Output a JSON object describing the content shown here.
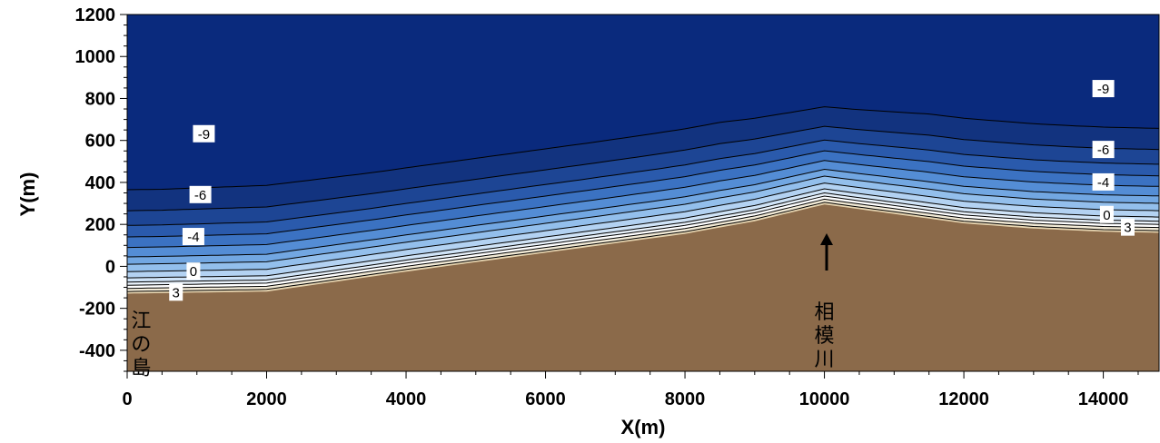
{
  "chart_data": {
    "type": "contour",
    "xlabel": "X(m)",
    "ylabel": "Y(m)",
    "xlim": [
      0,
      14800
    ],
    "ylim": [
      -500,
      1200
    ],
    "x_ticks": [
      "0",
      "2000",
      "4000",
      "6000",
      "8000",
      "10000",
      "12000",
      "14000"
    ],
    "x_tick_values": [
      0,
      2000,
      4000,
      6000,
      8000,
      10000,
      12000,
      14000
    ],
    "y_ticks": [
      "1200",
      "1000",
      "800",
      "600",
      "400",
      "200",
      "0",
      "-200",
      "-400"
    ],
    "y_tick_values": [
      1200,
      1000,
      800,
      600,
      400,
      200,
      0,
      -200,
      -400
    ],
    "shoreline": {
      "x": [
        0,
        2000,
        4000,
        6000,
        8000,
        9000,
        10000,
        11000,
        12000,
        13000,
        14000,
        14800
      ],
      "y": [
        -105,
        -95,
        0,
        90,
        180,
        240,
        320,
        275,
        230,
        205,
        190,
        185
      ]
    },
    "contour_levels": [
      3,
      2,
      1,
      0,
      -1,
      -2,
      -3,
      -4,
      -5,
      -6,
      -7,
      -8,
      -9
    ],
    "contour_offsets": [
      -15,
      0,
      15,
      30,
      50,
      80,
      115,
      150,
      195,
      245,
      300,
      370,
      470
    ],
    "contour_labels": [
      {
        "level": 3,
        "text": "3",
        "x": 700,
        "y": -125
      },
      {
        "level": 0,
        "text": "0",
        "x": 950,
        "y": -25
      },
      {
        "level": -4,
        "text": "-4",
        "x": 950,
        "y": 140
      },
      {
        "level": -6,
        "text": "-6",
        "x": 1050,
        "y": 340
      },
      {
        "level": -9,
        "text": "-9",
        "x": 1100,
        "y": 630
      },
      {
        "level": -9,
        "text": "-9",
        "x": 14000,
        "y": 845
      },
      {
        "level": -6,
        "text": "-6",
        "x": 14000,
        "y": 555
      },
      {
        "level": -4,
        "text": "-4",
        "x": 14000,
        "y": 400
      },
      {
        "level": 0,
        "text": "0",
        "x": 14050,
        "y": 245
      },
      {
        "level": 3,
        "text": "3",
        "x": 14350,
        "y": 185
      }
    ],
    "colors": {
      "land": "#8b6a4a",
      "sand": "#e8d7b4",
      "deep_water": "#0a2a7d",
      "contour_line": "#000000"
    },
    "annotations": [
      {
        "text": "江の島",
        "x": 200,
        "y": -290
      },
      {
        "text": "相模川",
        "x": 10000,
        "y": -250
      }
    ]
  }
}
